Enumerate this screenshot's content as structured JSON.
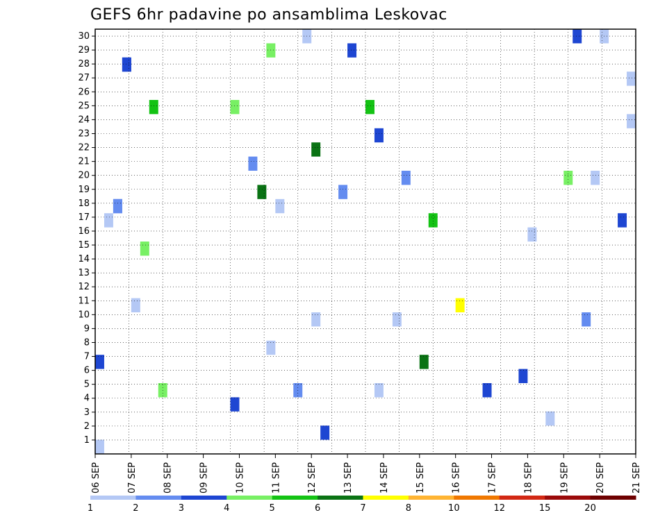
{
  "chart_data": {
    "type": "heatmap",
    "title": "GEFS 6hr padavine po ansamblima Leskovac",
    "xlabel": "",
    "ylabel": "",
    "x_ticks": [
      "06 SEP",
      "07 SEP",
      "08 SEP",
      "09 SEP",
      "10 SEP",
      "11 SEP",
      "12 SEP",
      "13 SEP",
      "14 SEP",
      "15 SEP",
      "16 SEP",
      "17 SEP",
      "18 SEP",
      "19 SEP",
      "20 SEP",
      "21 SEP"
    ],
    "y_ticks": [
      "1",
      "2",
      "3",
      "4",
      "5",
      "6",
      "7",
      "8",
      "9",
      "10",
      "11",
      "12",
      "13",
      "14",
      "15",
      "16",
      "17",
      "18",
      "19",
      "20",
      "21",
      "22",
      "23",
      "24",
      "25",
      "26",
      "27",
      "28",
      "29",
      "30"
    ],
    "xlim": [
      0,
      60
    ],
    "ylim": [
      0,
      30
    ],
    "grid": true,
    "legend": {
      "placement": "bottom",
      "labels": [
        "1",
        "2",
        "3",
        "4",
        "5",
        "6",
        "7",
        "8",
        "10",
        "12",
        "15",
        "20"
      ],
      "colors": [
        "#b4c8f5",
        "#648cf0",
        "#1e46d2",
        "#78f064",
        "#14c314",
        "#0a7314",
        "#ffff00",
        "#ffb432",
        "#f07800",
        "#d22814",
        "#9b0a0a",
        "#6e0000"
      ]
    },
    "cells": [
      [
        0,
        0,
        1
      ],
      [
        2,
        0,
        2
      ],
      [
        3,
        0,
        3
      ],
      [
        15,
        0,
        4
      ],
      [
        18,
        0,
        6
      ],
      [
        19,
        0,
        4
      ],
      [
        23,
        0,
        1
      ],
      [
        24,
        0,
        1
      ],
      [
        30,
        0,
        5
      ],
      [
        31,
        0,
        1
      ],
      [
        59,
        0,
        1
      ],
      [
        62,
        0,
        2
      ],
      [
        63,
        0,
        3
      ],
      [
        65,
        0,
        4
      ],
      [
        66,
        0,
        5
      ],
      [
        67,
        0,
        4
      ],
      [
        75,
        0,
        3
      ],
      [
        77,
        0,
        2
      ],
      [
        79,
        0,
        1
      ],
      [
        80,
        0,
        1
      ],
      [
        82,
        0,
        2
      ],
      [
        84,
        0,
        6
      ],
      [
        85,
        0,
        3
      ],
      [
        87,
        0,
        2
      ],
      [
        88,
        0,
        3
      ],
      [
        91,
        0,
        3
      ],
      [
        93,
        0,
        1
      ],
      [
        94,
        0,
        2
      ],
      [
        96,
        0,
        6
      ],
      [
        97,
        0,
        5
      ],
      [
        100,
        0,
        7
      ],
      [
        103,
        0,
        3
      ],
      [
        107,
        0,
        3
      ],
      [
        108,
        0,
        1
      ],
      [
        110,
        0,
        1
      ],
      [
        112,
        0,
        4
      ],
      [
        113,
        0,
        3
      ],
      [
        114,
        0,
        2
      ],
      [
        115,
        0,
        1
      ],
      [
        116,
        0,
        1
      ],
      [
        118,
        0,
        3
      ],
      [
        119,
        0,
        1
      ],
      [
        120,
        0,
        3
      ],
      [
        121,
        0,
        1
      ],
      [
        124,
        0,
        1
      ]
    ]
  },
  "colorbar_labels": [
    "1",
    "2",
    "3",
    "4",
    "5",
    "6",
    "7",
    "8",
    "10",
    "12",
    "15",
    "20"
  ]
}
